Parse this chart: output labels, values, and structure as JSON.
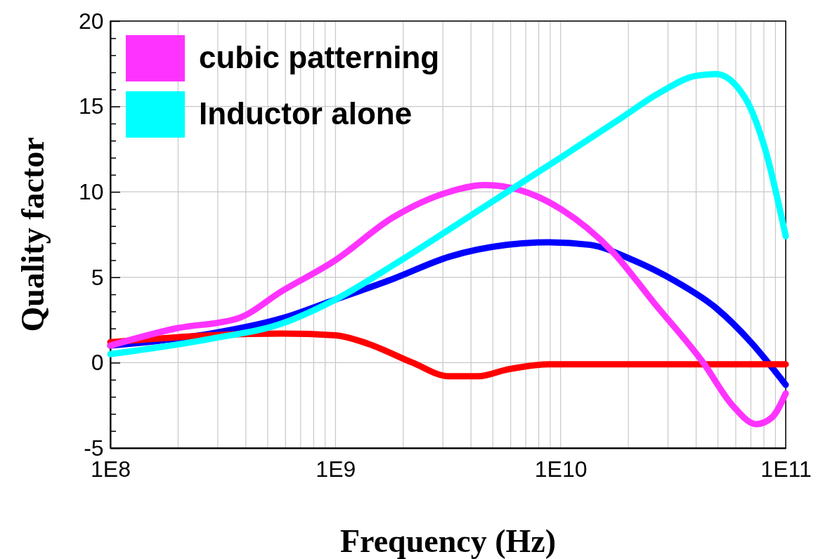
{
  "chart_data": {
    "type": "line",
    "xlabel": "Frequency (Hz)",
    "ylabel": "Quality factor",
    "log": "x",
    "grid": true,
    "legend": "top left",
    "line_style": "solid",
    "marker": "none",
    "xlim": [
      100000000.0,
      100000000000.0
    ],
    "ylim": [
      -5,
      20
    ],
    "xticks": [
      {
        "value": 100000000.0,
        "label": "1E8"
      },
      {
        "value": 200000000.0,
        "label": null
      },
      {
        "value": 300000000.0,
        "label": null
      },
      {
        "value": 400000000.0,
        "label": null
      },
      {
        "value": 500000000.0,
        "label": null
      },
      {
        "value": 600000000.0,
        "label": null
      },
      {
        "value": 700000000.0,
        "label": null
      },
      {
        "value": 800000000.0,
        "label": null
      },
      {
        "value": 900000000.0,
        "label": null
      },
      {
        "value": 1000000000.0,
        "label": "1E9"
      },
      {
        "value": 2000000000.0,
        "label": null
      },
      {
        "value": 3000000000.0,
        "label": null
      },
      {
        "value": 4000000000.0,
        "label": null
      },
      {
        "value": 5000000000.0,
        "label": null
      },
      {
        "value": 6000000000.0,
        "label": null
      },
      {
        "value": 7000000000.0,
        "label": null
      },
      {
        "value": 8000000000.0,
        "label": null
      },
      {
        "value": 9000000000.0,
        "label": null
      },
      {
        "value": 10000000000.0,
        "label": "1E10"
      },
      {
        "value": 20000000000.0,
        "label": null
      },
      {
        "value": 30000000000.0,
        "label": null
      },
      {
        "value": 40000000000.0,
        "label": null
      },
      {
        "value": 50000000000.0,
        "label": null
      },
      {
        "value": 60000000000.0,
        "label": null
      },
      {
        "value": 70000000000.0,
        "label": null
      },
      {
        "value": 80000000000.0,
        "label": null
      },
      {
        "value": 90000000000.0,
        "label": null
      },
      {
        "value": 100000000000.0,
        "label": "1E11"
      }
    ],
    "yticks": [
      -5,
      {
        "value": -4,
        "label": null
      },
      {
        "value": -3,
        "label": null
      },
      {
        "value": -2,
        "label": null
      },
      {
        "value": -1,
        "label": null
      },
      0,
      {
        "value": 1,
        "label": null
      },
      {
        "value": 2,
        "label": null
      },
      {
        "value": 3,
        "label": null
      },
      {
        "value": 4,
        "label": null
      },
      5,
      {
        "value": 6,
        "label": null
      },
      {
        "value": 7,
        "label": null
      },
      {
        "value": 8,
        "label": null
      },
      {
        "value": 9,
        "label": null
      },
      10,
      {
        "value": 11,
        "label": null
      },
      {
        "value": 12,
        "label": null
      },
      {
        "value": 13,
        "label": null
      },
      {
        "value": 14,
        "label": null
      },
      15,
      {
        "value": 16,
        "label": null
      },
      {
        "value": 17,
        "label": null
      },
      {
        "value": 18,
        "label": null
      },
      {
        "value": 19,
        "label": null
      },
      20
    ],
    "series": [
      {
        "color": "#0000ff",
        "x": [
          100000000.0,
          280000000.0,
          580000000.0,
          1000000000.0,
          1800000000.0,
          3200000000.0,
          5800000000.0,
          8900000000.0,
          13500000000.0,
          21000000000.0,
          32000000000.0,
          49000000000.0,
          70000000000.0,
          100000000000.0
        ],
        "values": [
          1.0,
          1.7,
          2.6,
          3.7,
          4.9,
          6.2,
          6.9,
          7.05,
          6.9,
          6.0,
          4.8,
          3.2,
          1.2,
          -1.3
        ]
      },
      {
        "color": "#ff0000",
        "x": [
          100000000.0,
          280000000.0,
          580000000.0,
          1000000000.0,
          1400000000.0,
          2200000000.0,
          3200000000.0,
          4300000000.0,
          5800000000.0,
          8900000000.0,
          21000000000.0,
          100000000000.0
        ],
        "values": [
          1.2,
          1.6,
          1.7,
          1.6,
          1.1,
          0.0,
          -0.8,
          -0.8,
          -0.4,
          -0.1,
          -0.1,
          -0.1
        ]
      },
      {
        "name": "cubic patterning",
        "color": "#ff33ff",
        "x": [
          100000000.0,
          195000000.0,
          370000000.0,
          580000000.0,
          1000000000.0,
          1800000000.0,
          3200000000.0,
          4600000000.0,
          6600000000.0,
          10000000000.0,
          17000000000.0,
          26000000000.0,
          43000000000.0,
          58000000000.0,
          74000000000.0,
          87000000000.0,
          100000000000.0
        ],
        "values": [
          1.0,
          2.0,
          2.6,
          4.2,
          6.0,
          8.5,
          10.0,
          10.4,
          10.1,
          9.0,
          6.5,
          3.5,
          0.0,
          -2.5,
          -3.6,
          -3.2,
          -1.8
        ]
      },
      {
        "name": "Inductor alone",
        "color": "#00ffff",
        "x": [
          100000000.0,
          280000000.0,
          580000000.0,
          1000000000.0,
          1800000000.0,
          3200000000.0,
          5800000000.0,
          10000000000.0,
          18000000000.0,
          27500000000.0,
          40000000000.0,
          49000000000.0,
          66000000000.0,
          81000000000.0,
          100000000000.0
        ],
        "values": [
          0.5,
          1.4,
          2.3,
          3.7,
          5.7,
          7.8,
          10.0,
          12.0,
          14.2,
          15.8,
          16.8,
          16.9,
          15.5,
          12.5,
          7.4
        ]
      }
    ]
  }
}
